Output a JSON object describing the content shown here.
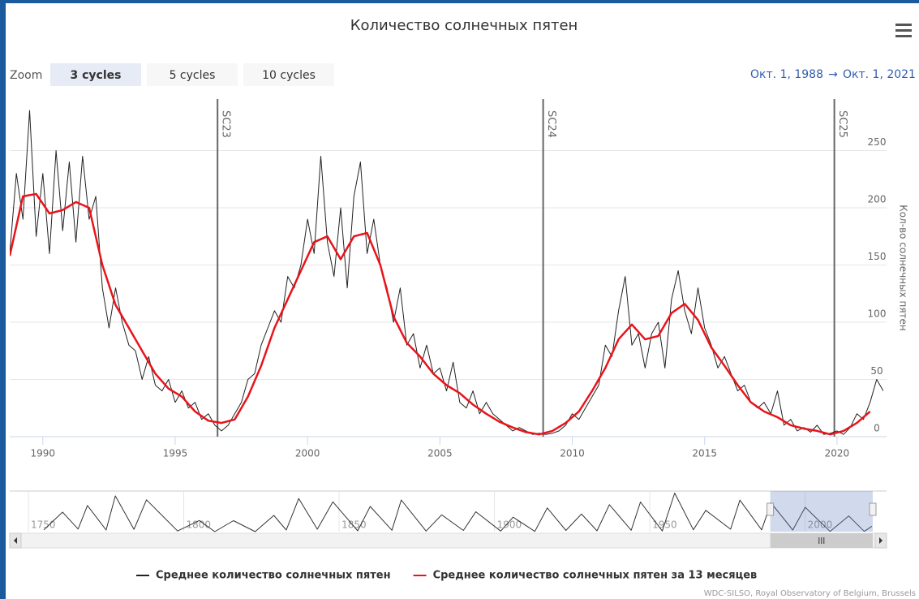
{
  "chart_data": {
    "type": "line",
    "title": "Количество солнечных пятен",
    "y_axis_label": "Кол-во солнечных пятен",
    "xlim": [
      1988.75,
      2021.75
    ],
    "xticks": [
      1990,
      1995,
      2000,
      2005,
      2010,
      2015,
      2020
    ],
    "ylim": [
      0,
      295
    ],
    "yticks": [
      0,
      50,
      100,
      150,
      200,
      250
    ],
    "grid": true,
    "plot_lines": [
      {
        "value": 1996.6,
        "label": "SC23"
      },
      {
        "value": 2008.9,
        "label": "SC24"
      },
      {
        "value": 2019.9,
        "label": "SC25"
      }
    ],
    "series": [
      {
        "name": "Среднее количество солнечных пятен",
        "color": "#222222",
        "x": [
          1988.75,
          1989,
          1989.25,
          1989.5,
          1989.75,
          1990,
          1990.25,
          1990.5,
          1990.75,
          1991,
          1991.25,
          1991.5,
          1991.75,
          1992,
          1992.25,
          1992.5,
          1992.75,
          1993,
          1993.25,
          1993.5,
          1993.75,
          1994,
          1994.25,
          1994.5,
          1994.75,
          1995,
          1995.25,
          1995.5,
          1995.75,
          1996,
          1996.25,
          1996.5,
          1996.75,
          1997,
          1997.25,
          1997.5,
          1997.75,
          1998,
          1998.25,
          1998.5,
          1998.75,
          1999,
          1999.25,
          1999.5,
          1999.75,
          2000,
          2000.25,
          2000.5,
          2000.75,
          2001,
          2001.25,
          2001.5,
          2001.75,
          2002,
          2002.25,
          2002.5,
          2002.75,
          2003,
          2003.25,
          2003.5,
          2003.75,
          2004,
          2004.25,
          2004.5,
          2004.75,
          2005,
          2005.25,
          2005.5,
          2005.75,
          2006,
          2006.25,
          2006.5,
          2006.75,
          2007,
          2007.25,
          2007.5,
          2007.75,
          2008,
          2008.25,
          2008.5,
          2008.75,
          2009,
          2009.25,
          2009.5,
          2009.75,
          2010,
          2010.25,
          2010.5,
          2010.75,
          2011,
          2011.25,
          2011.5,
          2011.75,
          2012,
          2012.25,
          2012.5,
          2012.75,
          2013,
          2013.25,
          2013.5,
          2013.75,
          2014,
          2014.25,
          2014.5,
          2014.75,
          2015,
          2015.25,
          2015.5,
          2015.75,
          2016,
          2016.25,
          2016.5,
          2016.75,
          2017,
          2017.25,
          2017.5,
          2017.75,
          2018,
          2018.25,
          2018.5,
          2018.75,
          2019,
          2019.25,
          2019.5,
          2019.75,
          2020,
          2020.25,
          2020.5,
          2020.75,
          2021,
          2021.25,
          2021.5,
          2021.75
        ],
        "values": [
          160,
          230,
          190,
          285,
          175,
          230,
          160,
          250,
          180,
          240,
          170,
          245,
          190,
          210,
          130,
          95,
          130,
          100,
          80,
          75,
          50,
          70,
          45,
          40,
          50,
          30,
          40,
          25,
          30,
          15,
          20,
          10,
          5,
          10,
          20,
          30,
          50,
          55,
          80,
          95,
          110,
          100,
          140,
          130,
          150,
          190,
          160,
          245,
          170,
          140,
          200,
          130,
          210,
          240,
          160,
          190,
          150,
          130,
          100,
          130,
          80,
          90,
          60,
          80,
          55,
          60,
          40,
          65,
          30,
          25,
          40,
          20,
          30,
          20,
          15,
          10,
          5,
          8,
          5,
          2,
          3,
          2,
          3,
          5,
          10,
          20,
          15,
          25,
          35,
          45,
          80,
          70,
          110,
          140,
          80,
          90,
          60,
          90,
          100,
          60,
          120,
          145,
          110,
          90,
          130,
          95,
          80,
          60,
          70,
          55,
          40,
          45,
          30,
          25,
          30,
          20,
          40,
          10,
          15,
          5,
          8,
          4,
          10,
          2,
          3,
          5,
          2,
          8,
          20,
          15,
          30,
          50,
          40
        ]
      },
      {
        "name": "Среднее количество солнечных пятен за 13 месяцев",
        "color": "#e8141a",
        "x": [
          1988.75,
          1989.25,
          1989.75,
          1990.25,
          1990.75,
          1991.25,
          1991.75,
          1992.25,
          1992.75,
          1993.25,
          1993.75,
          1994.25,
          1994.75,
          1995.25,
          1995.75,
          1996.25,
          1996.75,
          1997.25,
          1997.75,
          1998.25,
          1998.75,
          1999.25,
          1999.75,
          2000.25,
          2000.75,
          2001.25,
          2001.75,
          2002.25,
          2002.75,
          2003.25,
          2003.75,
          2004.25,
          2004.75,
          2005.25,
          2005.75,
          2006.25,
          2006.75,
          2007.25,
          2007.75,
          2008.25,
          2008.75,
          2009.25,
          2009.75,
          2010.25,
          2010.75,
          2011.25,
          2011.75,
          2012.25,
          2012.75,
          2013.25,
          2013.75,
          2014.25,
          2014.75,
          2015.25,
          2015.75,
          2016.25,
          2016.75,
          2017.25,
          2017.75,
          2018.25,
          2018.75,
          2019.25,
          2019.75,
          2020.25,
          2020.75,
          2021.25
        ],
        "values": [
          158,
          210,
          212,
          195,
          198,
          205,
          200,
          150,
          115,
          95,
          75,
          55,
          42,
          35,
          22,
          14,
          12,
          15,
          35,
          62,
          95,
          120,
          145,
          170,
          175,
          155,
          175,
          178,
          150,
          105,
          82,
          70,
          55,
          45,
          38,
          28,
          20,
          13,
          8,
          4,
          2,
          5,
          12,
          22,
          40,
          60,
          85,
          98,
          85,
          88,
          108,
          116,
          102,
          78,
          62,
          45,
          30,
          22,
          17,
          10,
          7,
          5,
          2,
          5,
          12,
          22
        ]
      }
    ],
    "navigator": {
      "xlim": [
        1744,
        2021.75
      ],
      "ylim": [
        0,
        300
      ],
      "xticks": [
        1750,
        1800,
        1850,
        1900,
        1950,
        2000
      ],
      "series": {
        "color": "#333333",
        "x": [
          1755,
          1761,
          1766,
          1769,
          1775,
          1778,
          1784,
          1788,
          1798,
          1805,
          1810,
          1816,
          1823,
          1829,
          1833,
          1837,
          1843,
          1848,
          1856,
          1860,
          1867,
          1870,
          1878,
          1883,
          1890,
          1894,
          1902,
          1906,
          1913,
          1917,
          1923,
          1928,
          1933,
          1937,
          1944,
          1947,
          1954,
          1958,
          1964,
          1968,
          1976,
          1979,
          1986,
          1989,
          1996,
          2000,
          2008,
          2014,
          2019,
          2021.5
        ],
        "values": [
          14,
          144,
          19,
          193,
          12,
          264,
          17,
          235,
          5,
          82,
          0,
          81,
          0,
          120,
          12,
          245,
          18,
          220,
          6,
          186,
          10,
          234,
          4,
          124,
          9,
          147,
          4,
          107,
          2,
          175,
          9,
          130,
          6,
          199,
          10,
          219,
          5,
          285,
          14,
          157,
          18,
          233,
          13,
          213,
          12,
          180,
          2,
          116,
          2,
          40
        ]
      }
    }
  },
  "controls": {
    "zoom_label": "Zoom",
    "buttons": [
      "3 cycles",
      "5 cycles",
      "10 cycles"
    ],
    "selected": 0,
    "range_from": "Окт. 1, 1988",
    "range_arrow": "→",
    "range_to": "Окт. 1, 2021"
  },
  "credits": "WDC-SILSO, Royal Observatory of Belgium, Brussels"
}
